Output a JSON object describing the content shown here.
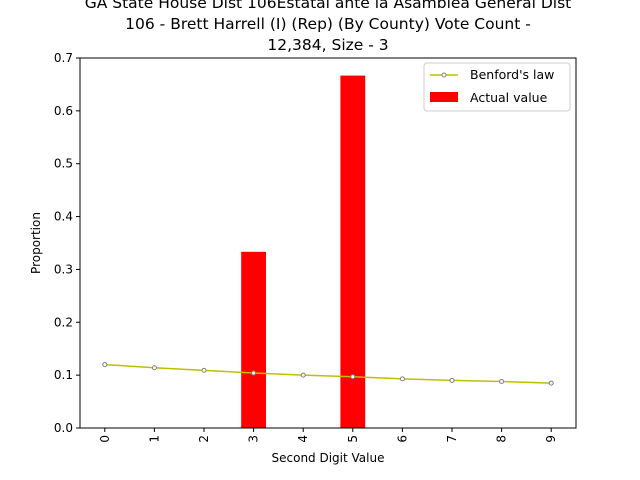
{
  "chart_data": {
    "type": "bar",
    "title_lines": [
      "GA State House Dist 106Estatal ante la Asamblea General Dist",
      "106 - Brett Harrell (I) (Rep) (By County) Vote Count -",
      "12,384, Size - 3"
    ],
    "xlabel": "Second Digit Value",
    "ylabel": "Proportion",
    "categories": [
      "0",
      "1",
      "2",
      "3",
      "4",
      "5",
      "6",
      "7",
      "8",
      "9"
    ],
    "ylim": [
      0,
      0.7
    ],
    "yticks": [
      "0.0",
      "0.1",
      "0.2",
      "0.3",
      "0.4",
      "0.5",
      "0.6",
      "0.7"
    ],
    "series": [
      {
        "name": "Benford's law",
        "kind": "line",
        "color": "#bfbf00",
        "marker_color": "#808080",
        "values": [
          0.12,
          0.114,
          0.109,
          0.104,
          0.1,
          0.097,
          0.093,
          0.09,
          0.088,
          0.085
        ]
      },
      {
        "name": "Actual value",
        "kind": "bar",
        "color": "#ff0000",
        "values": [
          0,
          0,
          0,
          0.3333,
          0,
          0.6667,
          0,
          0,
          0,
          0
        ]
      }
    ],
    "legend_position": "top-right",
    "grid": false
  }
}
